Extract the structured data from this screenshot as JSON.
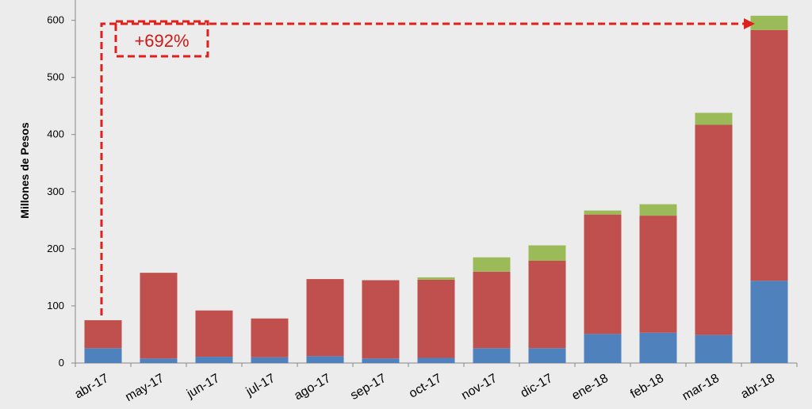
{
  "chart_data": {
    "type": "stacked-bar",
    "y_label": "Millones de Pesos",
    "annotation": "+692%",
    "categories": [
      "abr-17",
      "may-17",
      "jun-17",
      "jul-17",
      "ago-17",
      "sep-17",
      "oct-17",
      "nov-17",
      "dic-17",
      "ene-18",
      "feb-18",
      "mar-18",
      "abr-18"
    ],
    "series": [
      {
        "color": "#4f81bd",
        "values": [
          26,
          8,
          11,
          10,
          12,
          8,
          9,
          26,
          26,
          51,
          53,
          49,
          144
        ]
      },
      {
        "color": "#c0504d",
        "values": [
          49,
          150,
          81,
          68,
          135,
          137,
          137,
          134,
          153,
          209,
          205,
          368,
          439
        ]
      },
      {
        "color": "#9bbb59",
        "values": [
          0,
          0,
          0,
          0,
          0,
          0,
          4,
          25,
          27,
          7,
          20,
          21,
          25
        ]
      }
    ],
    "ylim": [
      0,
      630
    ],
    "yticks": [
      0,
      100,
      200,
      300,
      400,
      500,
      600
    ],
    "grid": false
  }
}
